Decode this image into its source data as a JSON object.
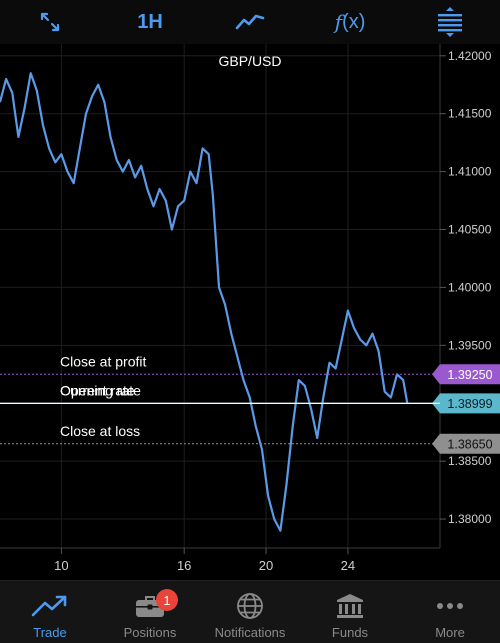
{
  "toolbar": {
    "timeframe": "1H",
    "function_label": "(x)",
    "function_glyph": "f"
  },
  "chart_data": {
    "type": "line",
    "title": "GBP/USD",
    "x_ticks": [
      {
        "label": "10",
        "day": 10
      },
      {
        "label": "16",
        "day": 16
      },
      {
        "label": "20",
        "day": 20
      },
      {
        "label": "24",
        "day": 24
      }
    ],
    "y_ticks": [
      "1.42000",
      "1.41500",
      "1.41000",
      "1.40500",
      "1.40000",
      "1.39500",
      "1.39000",
      "1.38500",
      "1.38000"
    ],
    "ylim": [
      1.3775,
      1.4205
    ],
    "xlim": [
      7.0,
      28.5
    ],
    "series": [
      {
        "color": "#5b9ae8",
        "points": [
          [
            7.0,
            1.416
          ],
          [
            7.3,
            1.418
          ],
          [
            7.6,
            1.4168
          ],
          [
            7.9,
            1.413
          ],
          [
            8.2,
            1.4155
          ],
          [
            8.5,
            1.4185
          ],
          [
            8.8,
            1.417
          ],
          [
            9.1,
            1.414
          ],
          [
            9.4,
            1.412
          ],
          [
            9.7,
            1.4108
          ],
          [
            10.0,
            1.4115
          ],
          [
            10.3,
            1.41
          ],
          [
            10.6,
            1.409
          ],
          [
            10.9,
            1.412
          ],
          [
            11.2,
            1.415
          ],
          [
            11.5,
            1.4165
          ],
          [
            11.8,
            1.4175
          ],
          [
            12.1,
            1.416
          ],
          [
            12.4,
            1.413
          ],
          [
            12.7,
            1.411
          ],
          [
            13.0,
            1.41
          ],
          [
            13.3,
            1.411
          ],
          [
            13.6,
            1.4095
          ],
          [
            13.9,
            1.4105
          ],
          [
            14.2,
            1.4085
          ],
          [
            14.5,
            1.407
          ],
          [
            14.8,
            1.4085
          ],
          [
            15.1,
            1.4075
          ],
          [
            15.4,
            1.405
          ],
          [
            15.7,
            1.407
          ],
          [
            16.0,
            1.4075
          ],
          [
            16.3,
            1.41
          ],
          [
            16.6,
            1.409
          ],
          [
            16.9,
            1.412
          ],
          [
            17.2,
            1.4115
          ],
          [
            17.4,
            1.408
          ],
          [
            17.7,
            1.4
          ],
          [
            18.0,
            1.3985
          ],
          [
            18.3,
            1.396
          ],
          [
            18.6,
            1.394
          ],
          [
            18.9,
            1.392
          ],
          [
            19.2,
            1.3905
          ],
          [
            19.5,
            1.388
          ],
          [
            19.8,
            1.386
          ],
          [
            20.1,
            1.382
          ],
          [
            20.4,
            1.38
          ],
          [
            20.7,
            1.379
          ],
          [
            21.0,
            1.383
          ],
          [
            21.3,
            1.388
          ],
          [
            21.6,
            1.392
          ],
          [
            21.9,
            1.3915
          ],
          [
            22.2,
            1.3895
          ],
          [
            22.5,
            1.387
          ],
          [
            22.8,
            1.3905
          ],
          [
            23.1,
            1.3935
          ],
          [
            23.4,
            1.393
          ],
          [
            23.7,
            1.3955
          ],
          [
            24.0,
            1.398
          ],
          [
            24.3,
            1.3965
          ],
          [
            24.6,
            1.3955
          ],
          [
            24.9,
            1.395
          ],
          [
            25.2,
            1.396
          ],
          [
            25.5,
            1.3945
          ],
          [
            25.8,
            1.391
          ],
          [
            26.1,
            1.3905
          ],
          [
            26.4,
            1.3925
          ],
          [
            26.7,
            1.392
          ],
          [
            26.9,
            1.39
          ]
        ]
      }
    ],
    "levels": [
      {
        "name": "Close at profit",
        "value": 1.3925,
        "label": "1.39250",
        "color": "#9b59d0",
        "text_color": "#ffffff",
        "dashed": true
      },
      {
        "name": "Opening rate",
        "value": 1.38999,
        "label": "1.38999",
        "color": "#5bb8cc",
        "text_color": "#0d1f24",
        "dashed": false
      },
      {
        "name": "Current rate",
        "value": 1.38999,
        "label": "",
        "color": "#ffffff",
        "text_color": "#ffffff",
        "dashed": false
      },
      {
        "name": "Close at loss",
        "value": 1.3865,
        "label": "1.38650",
        "color": "#8f8f8f",
        "text_color": "#111111",
        "dashed": true
      }
    ]
  },
  "tabs": [
    {
      "id": "trade",
      "label": "Trade",
      "icon": "trend-icon",
      "active": true
    },
    {
      "id": "positions",
      "label": "Positions",
      "icon": "briefcase-icon",
      "badge": "1"
    },
    {
      "id": "notifications",
      "label": "Notifications",
      "icon": "globe-icon"
    },
    {
      "id": "funds",
      "label": "Funds",
      "icon": "bank-icon"
    },
    {
      "id": "more",
      "label": "More",
      "icon": "more-dots-icon"
    }
  ]
}
